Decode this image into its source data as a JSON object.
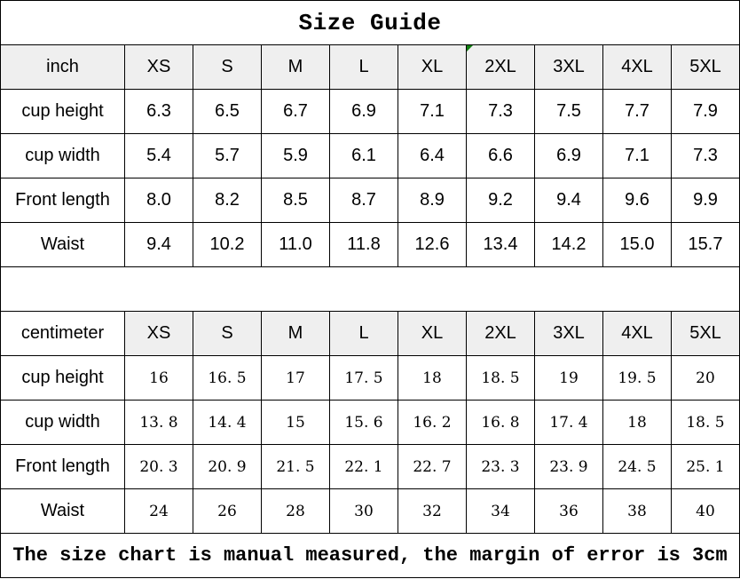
{
  "title": "Size Guide",
  "footer": "The size chart is manual measured, the margin of error is 3cm",
  "colors": {
    "background": "#ffffff",
    "text": "#000000",
    "border": "#000000",
    "header_bg": "#efefef",
    "marker_green": "#0f7f0f"
  },
  "sizes": [
    "XS",
    "S",
    "M",
    "L",
    "XL",
    "2XL",
    "3XL",
    "4XL",
    "5XL"
  ],
  "tables": [
    {
      "unit_label": "inch",
      "unit_cell_shaded": true,
      "comment_marker_size": "2XL",
      "value_style": "sans",
      "rows": [
        {
          "label": "cup height",
          "values": [
            "6.3",
            "6.5",
            "6.7",
            "6.9",
            "7.1",
            "7.3",
            "7.5",
            "7.7",
            "7.9"
          ]
        },
        {
          "label": "cup width",
          "values": [
            "5.4",
            "5.7",
            "5.9",
            "6.1",
            "6.4",
            "6.6",
            "6.9",
            "7.1",
            "7.3"
          ]
        },
        {
          "label": "Front length",
          "values": [
            "8.0",
            "8.2",
            "8.5",
            "8.7",
            "8.9",
            "9.2",
            "9.4",
            "9.6",
            "9.9"
          ]
        },
        {
          "label": "Waist",
          "values": [
            "9.4",
            "10.2",
            "11.0",
            "11.8",
            "12.6",
            "13.4",
            "14.2",
            "15.0",
            "15.7"
          ]
        }
      ]
    },
    {
      "unit_label": "centimeter",
      "unit_cell_shaded": false,
      "comment_marker_size": null,
      "value_style": "serif",
      "rows": [
        {
          "label": "cup height",
          "values": [
            "16",
            "16. 5",
            "17",
            "17. 5",
            "18",
            "18. 5",
            "19",
            "19. 5",
            "20"
          ]
        },
        {
          "label": "cup width",
          "values": [
            "13. 8",
            "14. 4",
            "15",
            "15. 6",
            "16. 2",
            "16. 8",
            "17. 4",
            "18",
            "18. 5"
          ]
        },
        {
          "label": "Front length",
          "values": [
            "20. 3",
            "20. 9",
            "21. 5",
            "22. 1",
            "22. 7",
            "23. 3",
            "23. 9",
            "24. 5",
            "25. 1"
          ]
        },
        {
          "label": "Waist",
          "values": [
            "24",
            "26",
            "28",
            "30",
            "32",
            "34",
            "36",
            "38",
            "40"
          ]
        }
      ]
    }
  ]
}
